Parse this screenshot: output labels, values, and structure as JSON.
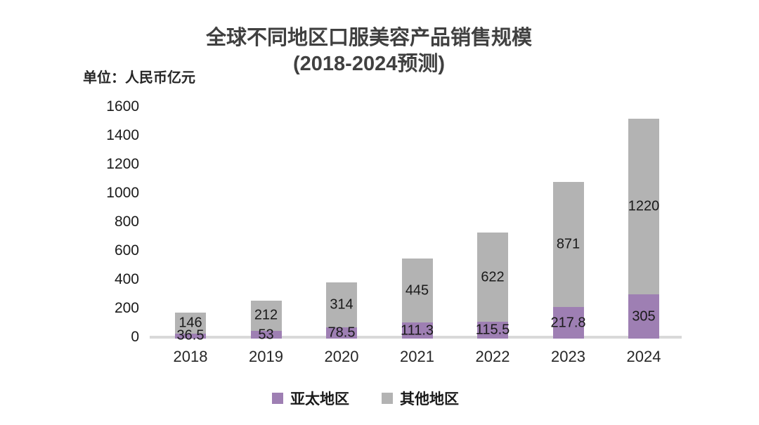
{
  "chart": {
    "title_line1": "全球不同地区口服美容产品销售规模",
    "title_line2": "(2018-2024预测)",
    "unit_label": "单位：人民币亿元"
  },
  "chart_data": {
    "type": "bar",
    "stacked": true,
    "title": "全球不同地区口服美容产品销售规模 (2018-2024预测)",
    "unit": "人民币亿元",
    "categories": [
      "2018",
      "2019",
      "2020",
      "2021",
      "2022",
      "2023",
      "2024"
    ],
    "series": [
      {
        "name": "亚太地区",
        "color": "#9e7fb3",
        "values": [
          36.5,
          53,
          78.5,
          111.3,
          115.5,
          217.8,
          305
        ]
      },
      {
        "name": "其他地区",
        "color": "#b3b3b3",
        "values": [
          146,
          212,
          314,
          445,
          622,
          871,
          1220
        ]
      }
    ],
    "totals": [
      182.5,
      265,
      392.5,
      556.3,
      737.5,
      1088.8,
      1525
    ],
    "ylim": [
      0,
      1600
    ],
    "yticks": [
      0,
      200,
      400,
      600,
      800,
      1000,
      1200,
      1400,
      1600
    ],
    "grid": false,
    "legend_position": "bottom",
    "value_labels_shown": true,
    "colors": {
      "axis_line": "#d9d9d9",
      "text": "#1a1a1a",
      "title": "#404040"
    }
  }
}
